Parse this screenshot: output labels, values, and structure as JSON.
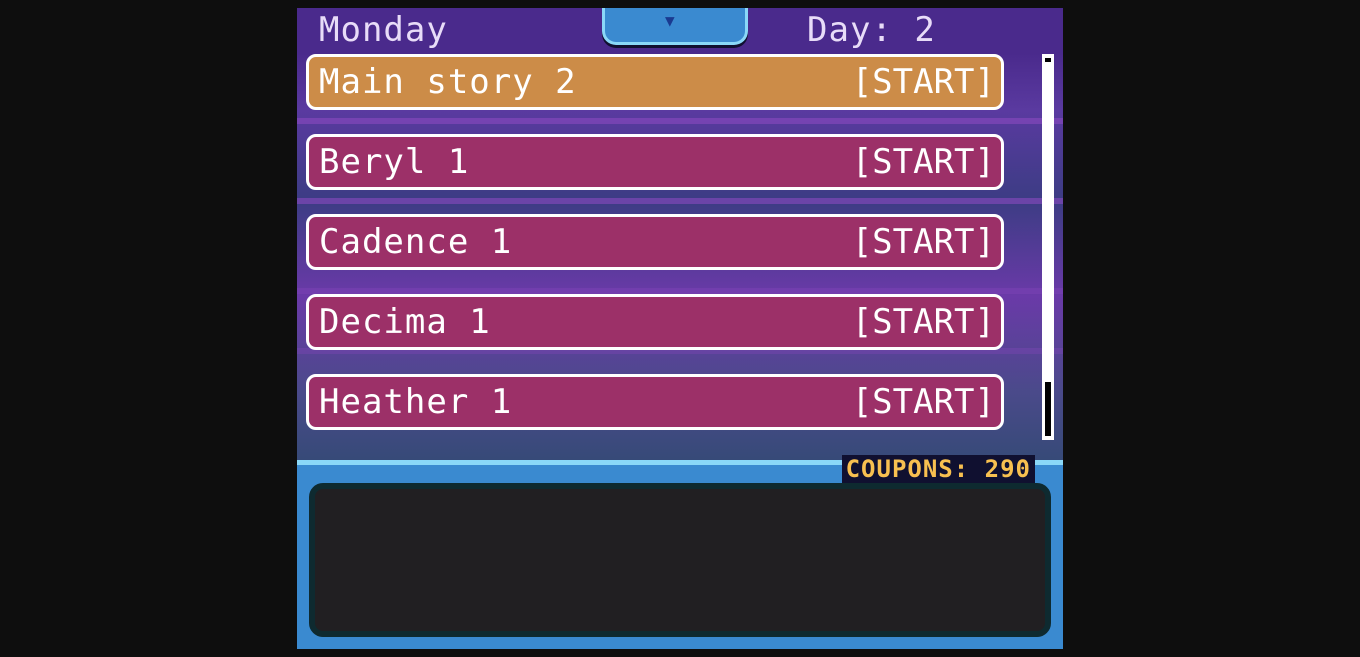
{
  "header": {
    "day_name": "Monday",
    "day_label": "Day: 2",
    "tab_icon": "triangle-down-icon"
  },
  "quests": [
    {
      "name": "Main story 2",
      "action": "[START]",
      "color": "#cc8c48"
    },
    {
      "name": "Beryl 1",
      "action": "[START]",
      "color": "#9c3068"
    },
    {
      "name": "Cadence 1",
      "action": "[START]",
      "color": "#9c3068"
    },
    {
      "name": "Decima 1",
      "action": "[START]",
      "color": "#9c3068"
    },
    {
      "name": "Heather 1",
      "action": "[START]",
      "color": "#9c3068"
    }
  ],
  "scroll": {
    "position_percent": 100
  },
  "panel": {
    "coupons": "COUPONS: 290",
    "text": ""
  }
}
